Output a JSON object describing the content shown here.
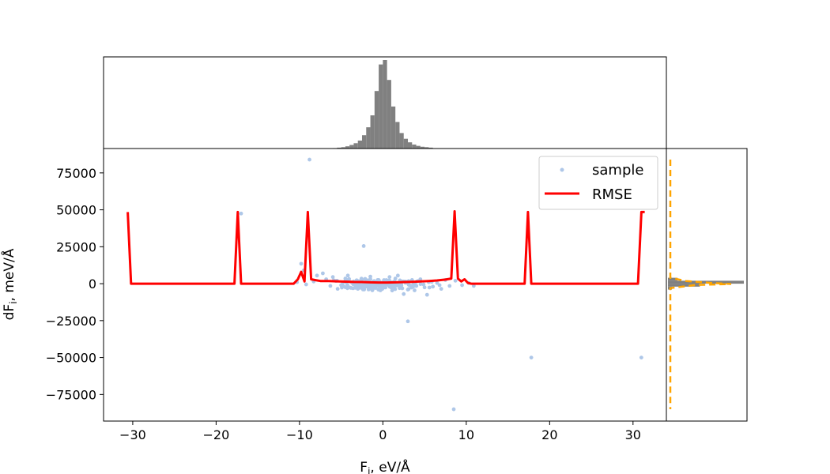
{
  "chart_data": {
    "type": "scatter",
    "xlabel_main": "F",
    "xlabel_sub": "i",
    "xlabel_unit": ", eV/Å",
    "ylabel_main": "dF",
    "ylabel_sub": "i",
    "ylabel_unit": ", meV/Å",
    "xlim": [
      -33.5,
      34
    ],
    "ylim": [
      -93000,
      91500
    ],
    "xticks": [
      -30,
      -20,
      -10,
      0,
      10,
      20,
      30
    ],
    "xtick_labels": [
      "−30",
      "−20",
      "−10",
      "0",
      "10",
      "20",
      "30"
    ],
    "yticks": [
      75000,
      50000,
      25000,
      0,
      -25000,
      -50000,
      -75000
    ],
    "ytick_labels": [
      "75000",
      "50000",
      "25000",
      "0",
      "−25000",
      "−50000",
      "−75000"
    ],
    "legend": {
      "placement": "top-right",
      "entries": [
        {
          "label": "sample",
          "kind": "marker",
          "color": "#aec7e8"
        },
        {
          "label": "RMSE",
          "kind": "line",
          "color": "#ff0000"
        }
      ]
    },
    "series": [
      {
        "name": "sample",
        "kind": "scatter",
        "color": "#aec7e8",
        "points": [
          [
            -8.8,
            84000
          ],
          [
            -2.3,
            25500
          ],
          [
            3.0,
            -25500
          ],
          [
            8.5,
            -85000
          ],
          [
            17.8,
            -50000
          ],
          [
            31.0,
            -50000
          ],
          [
            -17.0,
            47500
          ],
          [
            -9.8,
            13500
          ],
          [
            -9.5,
            9000
          ],
          [
            -7.2,
            7000
          ],
          [
            -7.9,
            5500
          ],
          [
            -6.8,
            3000
          ],
          [
            -6.0,
            4500
          ],
          [
            -5.5,
            2000
          ],
          [
            -5.0,
            -1000
          ],
          [
            -4.5,
            3500
          ],
          [
            -4.0,
            -2500
          ],
          [
            -3.5,
            1500
          ],
          [
            -3.0,
            -3500
          ],
          [
            -2.5,
            2500
          ],
          [
            -2.0,
            -1500
          ],
          [
            -1.5,
            3000
          ],
          [
            -1.0,
            -2000
          ],
          [
            -0.5,
            2500
          ],
          [
            0.0,
            -3000
          ],
          [
            0.5,
            2000
          ],
          [
            1.0,
            -2500
          ],
          [
            1.5,
            3500
          ],
          [
            2.0,
            -3000
          ],
          [
            2.5,
            1500
          ],
          [
            3.0,
            -4000
          ],
          [
            3.5,
            2500
          ],
          [
            4.0,
            -1500
          ],
          [
            4.5,
            3000
          ],
          [
            5.0,
            -2500
          ],
          [
            5.5,
            1000
          ],
          [
            6.0,
            -2000
          ],
          [
            6.5,
            500
          ],
          [
            7.0,
            -3500
          ],
          [
            8.0,
            -1500
          ],
          [
            8.7,
            2000
          ],
          [
            9.5,
            -1000
          ],
          [
            10.3,
            500
          ],
          [
            10.9,
            -1500
          ],
          [
            2.5,
            -7000
          ],
          [
            5.3,
            -7500
          ],
          [
            -4.2,
            5500
          ],
          [
            -1.5,
            4800
          ],
          [
            1.8,
            5500
          ],
          [
            -10.3,
            1000
          ],
          [
            -9.2,
            -500
          ],
          [
            -3.8,
            1000
          ],
          [
            -0.3,
            -4500
          ],
          [
            0.8,
            4500
          ],
          [
            3.8,
            -4500
          ],
          [
            6.8,
            -1000
          ],
          [
            -2.8,
            -500
          ],
          [
            1.2,
            700
          ],
          [
            -6.3,
            -1500
          ],
          [
            4.2,
            1800
          ],
          [
            7.5,
            2500
          ],
          [
            -8.3,
            1500
          ]
        ],
        "core_band": {
          "x": [
            -7,
            7
          ],
          "y": [
            -5000,
            4000
          ],
          "count": 180
        }
      },
      {
        "name": "RMSE",
        "kind": "line",
        "color": "#ff0000",
        "x": [
          -30.6,
          -30.2,
          -17.8,
          -17.4,
          -17.0,
          -10.7,
          -10.2,
          -9.8,
          -9.4,
          -9.0,
          -8.6,
          -8.2,
          -7.5,
          -6.5,
          -5.5,
          -4.5,
          -3.5,
          -2.5,
          -1.5,
          -0.5,
          0.5,
          1.5,
          2.5,
          3.5,
          4.5,
          5.5,
          6.5,
          7.5,
          8.2,
          8.6,
          9.0,
          9.4,
          9.8,
          10.2,
          10.6,
          17.0,
          17.4,
          17.8,
          30.6,
          31.0,
          31.4
        ],
        "y": [
          48500,
          0,
          0,
          48500,
          0,
          0,
          3000,
          8000,
          1500,
          48500,
          3000,
          2500,
          1800,
          1800,
          1600,
          1400,
          1200,
          1100,
          900,
          800,
          800,
          900,
          1100,
          1300,
          1500,
          1800,
          2200,
          2800,
          3500,
          49000,
          3500,
          1500,
          3000,
          500,
          0,
          0,
          48500,
          0,
          0,
          48500,
          48500
        ]
      }
    ],
    "top_histogram": {
      "edges": [
        -6,
        -5.5,
        -5,
        -4.5,
        -4,
        -3.5,
        -3,
        -2.5,
        -2,
        -1.5,
        -1,
        -0.5,
        0,
        0.5,
        1,
        1.5,
        2,
        2.5,
        3,
        3.5,
        4,
        4.5,
        5,
        5.5,
        6
      ],
      "counts": [
        1,
        2,
        3,
        5,
        8,
        12,
        18,
        30,
        48,
        75,
        130,
        190,
        200,
        155,
        95,
        60,
        35,
        22,
        14,
        9,
        6,
        4,
        3,
        2
      ],
      "color": "#808080"
    },
    "right_histogram": {
      "bins": [
        -4000,
        -2000,
        0,
        2000,
        4000
      ],
      "counts": [
        5,
        40,
        95,
        12
      ],
      "color": "#808080",
      "dashed_color": "#ffa500"
    }
  }
}
